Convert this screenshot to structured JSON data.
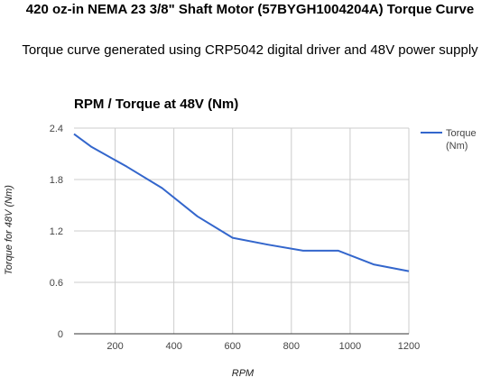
{
  "page": {
    "title": "420 oz-in NEMA 23 3/8\" Shaft Motor (57BYGH1004204A) Torque Curve",
    "subtitle": "Torque curve generated using CRP5042 digital driver and 48V power supply"
  },
  "chart_data": {
    "type": "line",
    "title": "RPM / Torque at 48V (Nm)",
    "xlabel": "RPM",
    "ylabel": "Torque for 48V (Nm)",
    "xlim": [
      60,
      1200
    ],
    "ylim": [
      0,
      2.4
    ],
    "xticks": [
      200,
      400,
      600,
      800,
      1000,
      1200
    ],
    "yticks": [
      0,
      0.6,
      1.2,
      1.8,
      2.4
    ],
    "grid": true,
    "legend_position": "right",
    "series": [
      {
        "name": "Torque (Nm)",
        "legend_lines": [
          "Torque",
          "(Nm)"
        ],
        "color": "#3366cc",
        "x": [
          60,
          120,
          240,
          360,
          480,
          600,
          720,
          840,
          960,
          1080,
          1200
        ],
        "y": [
          2.33,
          2.18,
          1.95,
          1.7,
          1.37,
          1.12,
          1.04,
          0.97,
          0.97,
          0.81,
          0.73
        ]
      }
    ]
  }
}
